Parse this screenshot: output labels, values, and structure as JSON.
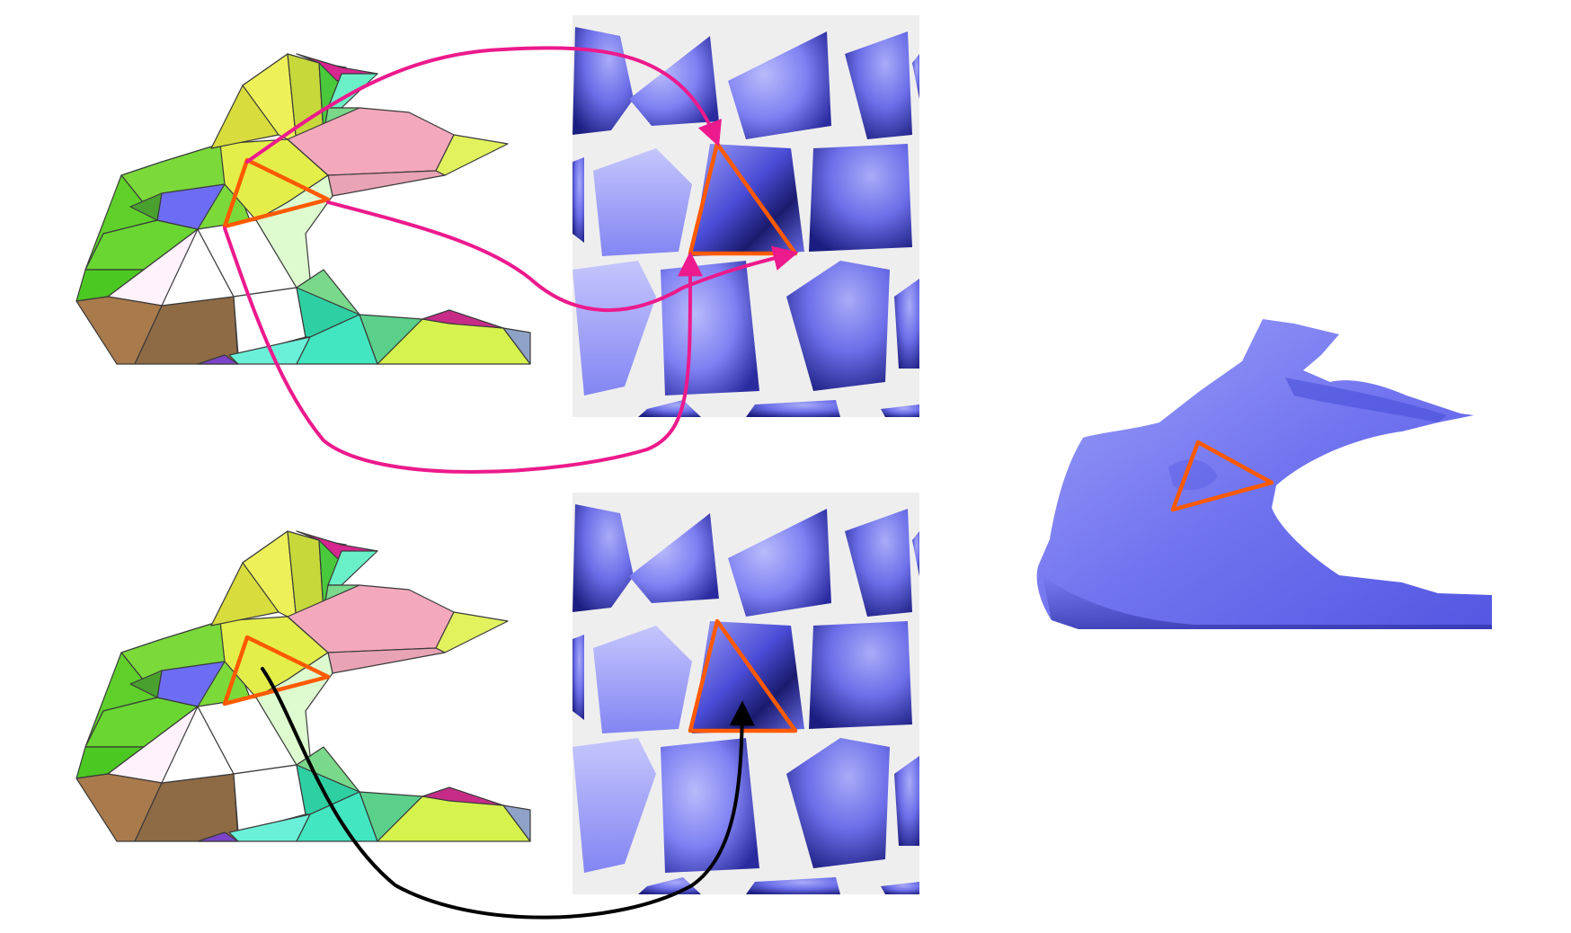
{
  "colors": {
    "background": "#ffffff",
    "highlight_triangle": "#ff5a00",
    "vertex_mapping_arrows": "#ec1a8c",
    "face_mapping_arrow": "#000000",
    "texture_background": "#eeeeee",
    "texture_blue": "#6f72f0",
    "bunny_blue": "#6f73f2",
    "mesh_edge": "#3a3a3a"
  },
  "panels": [
    {
      "id": "mesh-top",
      "kind": "colored-mesh"
    },
    {
      "id": "texture-atlas-top",
      "kind": "texture-atlas"
    },
    {
      "id": "mesh-bottom",
      "kind": "colored-mesh"
    },
    {
      "id": "texture-atlas-bottom",
      "kind": "texture-atlas"
    },
    {
      "id": "textured-bunny",
      "kind": "rendered-model"
    }
  ],
  "arrows": {
    "vertex_mapping_count": 3,
    "face_mapping_count": 1
  }
}
